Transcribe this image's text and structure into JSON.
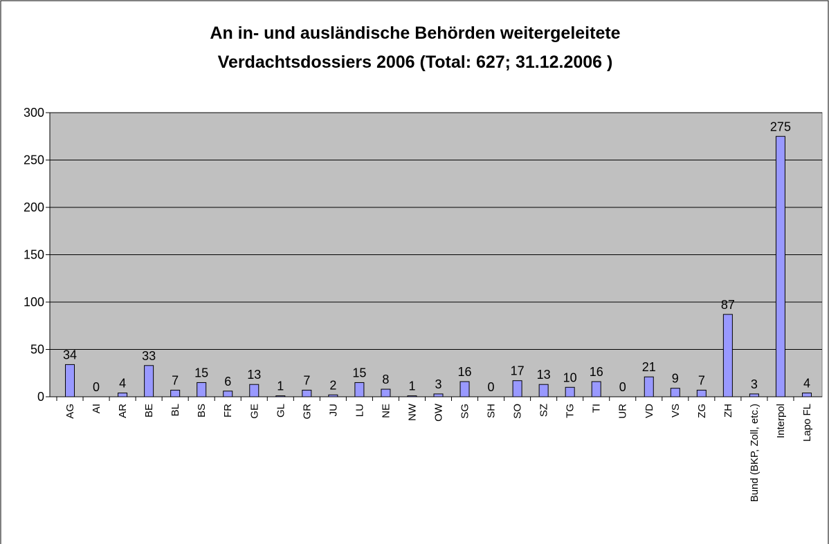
{
  "chart_data": {
    "type": "bar",
    "title": [
      "An in- und ausländische Behörden weitergeleitete",
      "Verdachtsdossiers 2006 (Total: 627; 31.12.2006 )"
    ],
    "categories": [
      "AG",
      "AI",
      "AR",
      "BE",
      "BL",
      "BS",
      "FR",
      "GE",
      "GL",
      "GR",
      "JU",
      "LU",
      "NE",
      "NW",
      "OW",
      "SG",
      "SH",
      "SO",
      "SZ",
      "TG",
      "TI",
      "UR",
      "VD",
      "VS",
      "ZG",
      "ZH",
      "Bund (BKP, Zoll, etc.)",
      "Interpol",
      "Lapo FL"
    ],
    "values": [
      34,
      0,
      4,
      33,
      7,
      15,
      6,
      13,
      1,
      7,
      2,
      15,
      8,
      1,
      3,
      16,
      0,
      17,
      13,
      10,
      16,
      0,
      21,
      9,
      7,
      87,
      3,
      275,
      4
    ],
    "color": "#9999ff",
    "ylim": [
      0,
      300
    ],
    "yticks": [
      0,
      50,
      100,
      150,
      200,
      250,
      300
    ],
    "grid": true
  }
}
